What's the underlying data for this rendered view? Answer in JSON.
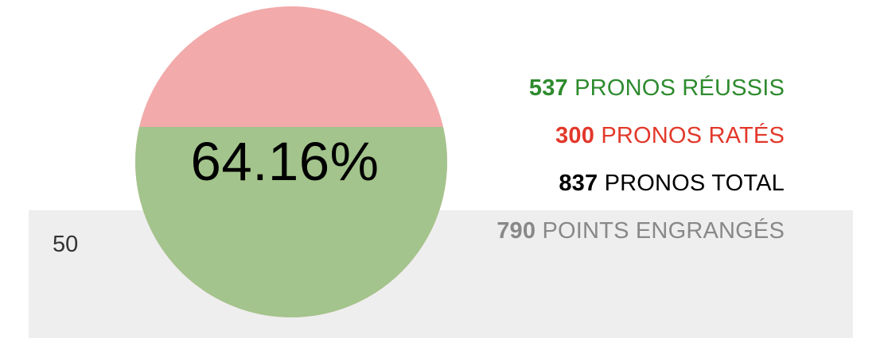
{
  "gauge": {
    "percent_label": "64.16%",
    "success_fraction": 0.6416,
    "colors": {
      "success": "#a3c48c",
      "fail": "#f2aaaa"
    }
  },
  "left_value": "50",
  "stats": [
    {
      "number": "537",
      "label": "PRONOS RÉUSSIS",
      "color": "#2e8b2e"
    },
    {
      "number": "300",
      "label": "PRONOS RATÉS",
      "color": "#e2382a"
    },
    {
      "number": "837",
      "label": "PRONOS TOTAL",
      "color": "#000000"
    },
    {
      "number": "790",
      "label": "POINTS ENGRANGÉS",
      "color": "#888888"
    }
  ]
}
